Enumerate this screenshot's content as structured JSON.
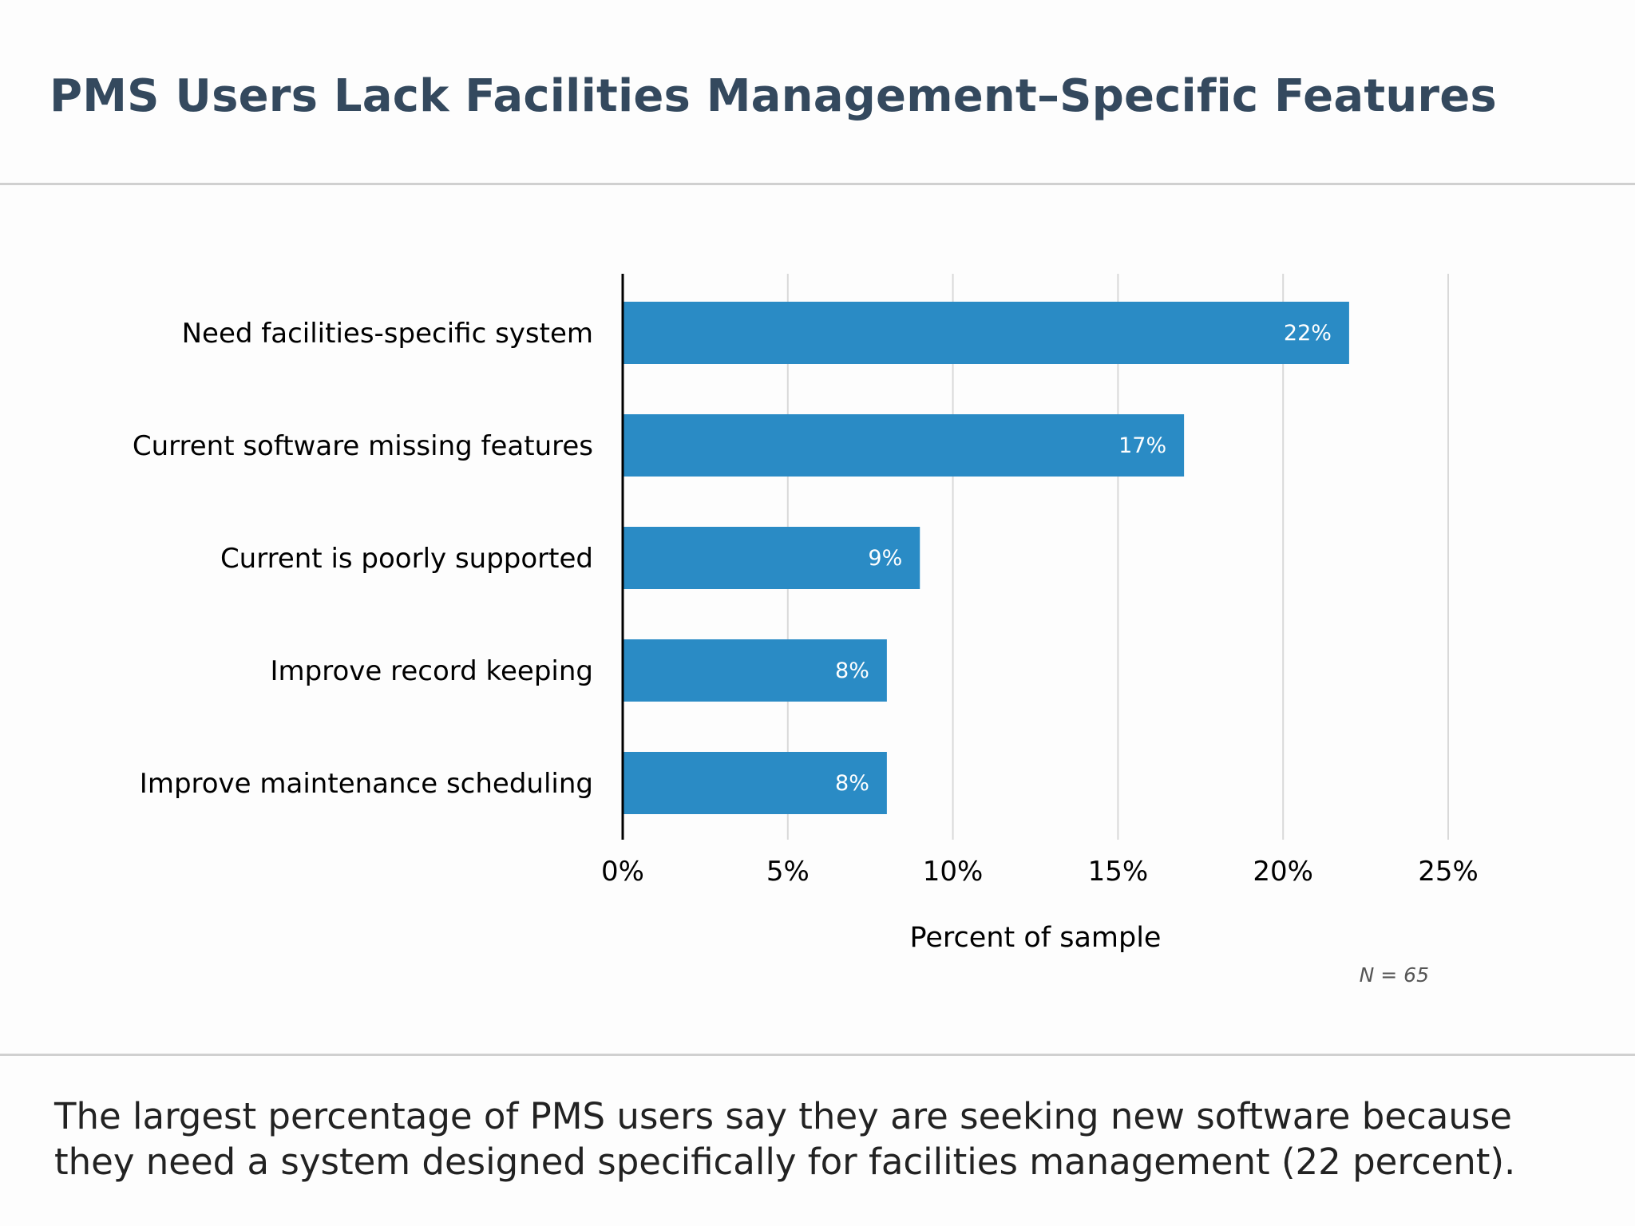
{
  "title": "PMS Users Lack Facilities Management–Specific Features",
  "caption": "The largest percentage of PMS users say they are seeking new software because they need a system designed specifically for facilities management (22 percent).",
  "note": "N = 65",
  "colors": {
    "bar": "#2a8bc5",
    "grid": "#d9d9d9",
    "axis": "#000000",
    "bar_label": "#ffffff",
    "title": "#34495e"
  },
  "chart_data": {
    "type": "bar",
    "orientation": "horizontal",
    "categories": [
      "Need facilities-specific system",
      "Current software missing features",
      "Current is poorly supported",
      "Improve record keeping",
      "Improve maintenance scheduling"
    ],
    "values": [
      22,
      17,
      9,
      8,
      8
    ],
    "data_labels": [
      "22%",
      "17%",
      "9%",
      "8%",
      "8%"
    ],
    "xlabel": "Percent of sample",
    "ylabel": "",
    "xlim": [
      0,
      25
    ],
    "xticks": [
      0,
      5,
      10,
      15,
      20,
      25
    ],
    "xtick_labels": [
      "0%",
      "5%",
      "10%",
      "15%",
      "20%",
      "25%"
    ],
    "grid": true,
    "legend": "none"
  }
}
